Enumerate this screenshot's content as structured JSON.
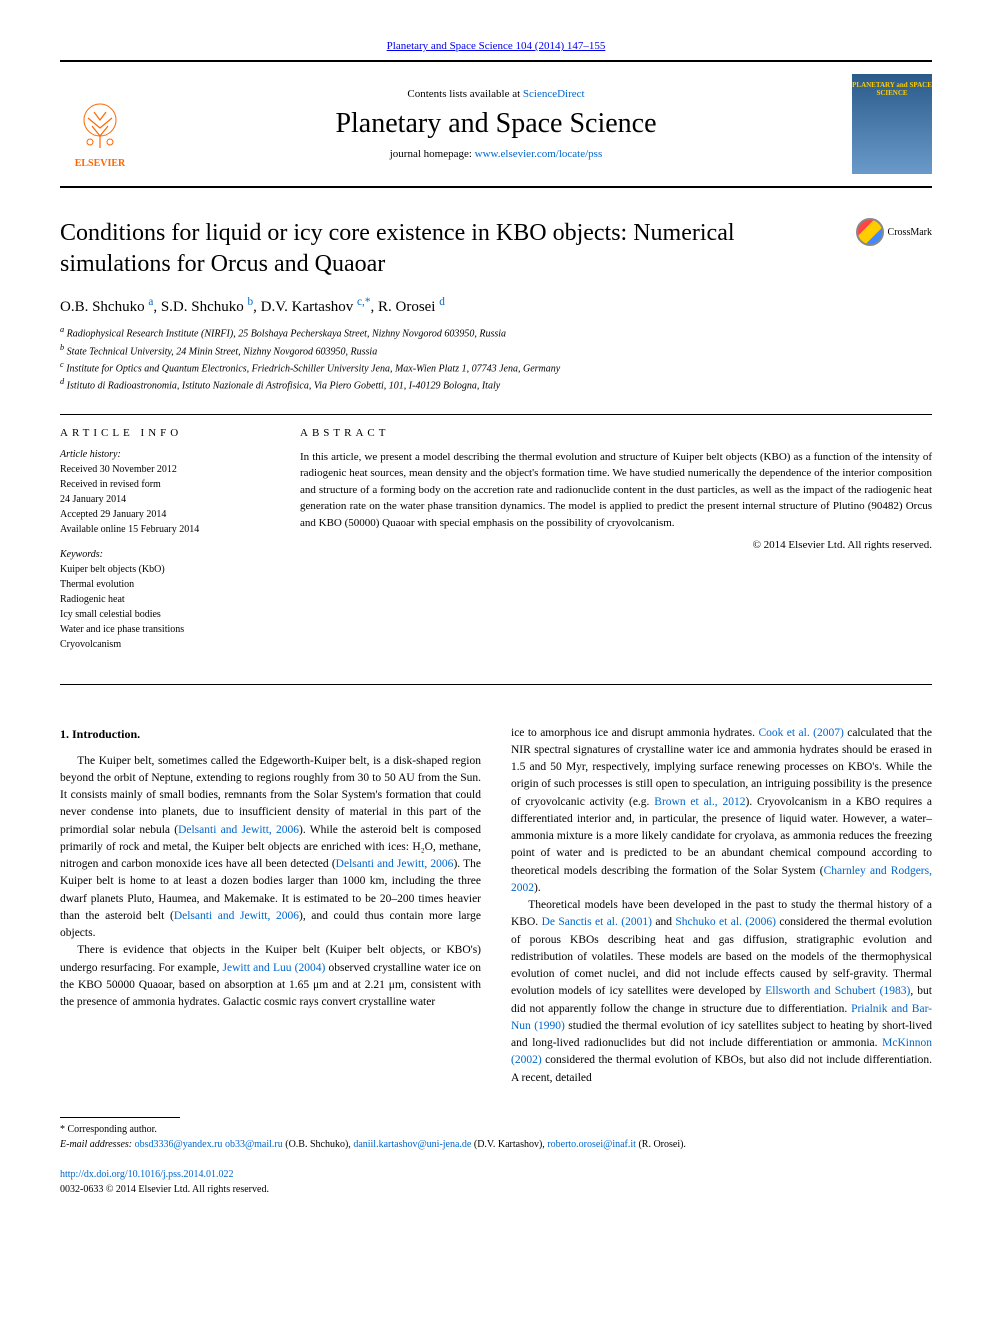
{
  "top_citation": "Planetary and Space Science 104 (2014) 147–155",
  "header": {
    "contents_lists_prefix": "Contents lists available at ",
    "contents_lists_link": "ScienceDirect",
    "journal_name": "Planetary and Space Science",
    "homepage_prefix": "journal homepage: ",
    "homepage_url": "www.elsevier.com/locate/pss",
    "publisher": "ELSEVIER",
    "cover_text": "PLANETARY and SPACE SCIENCE"
  },
  "crossmark_label": "CrossMark",
  "article": {
    "title": "Conditions for liquid or icy core existence in KBO objects: Numerical simulations for Orcus and Quaoar",
    "authors": [
      {
        "name": "O.B. Shchuko",
        "aff": "a"
      },
      {
        "name": "S.D. Shchuko",
        "aff": "b"
      },
      {
        "name": "D.V. Kartashov",
        "aff": "c,*"
      },
      {
        "name": "R. Orosei",
        "aff": "d"
      }
    ],
    "affiliations": [
      {
        "key": "a",
        "text": "Radiophysical Research Institute (NIRFI), 25 Bolshaya Pecherskaya Street, Nizhny Novgorod 603950, Russia"
      },
      {
        "key": "b",
        "text": "State Technical University, 24 Minin Street, Nizhny Novgorod 603950, Russia"
      },
      {
        "key": "c",
        "text": "Institute for Optics and Quantum Electronics, Friedrich-Schiller University Jena, Max-Wien Platz 1, 07743 Jena, Germany"
      },
      {
        "key": "d",
        "text": "Istituto di Radioastronomia, Istituto Nazionale di Astrofisica, Via Piero Gobetti, 101, I-40129 Bologna, Italy"
      }
    ]
  },
  "info": {
    "header": "ARTICLE INFO",
    "history_label": "Article history:",
    "history": "Received 30 November 2012\nReceived in revised form\n24 January 2014\nAccepted 29 January 2014\nAvailable online 15 February 2014",
    "keywords_label": "Keywords:",
    "keywords": "Kuiper belt objects (KbO)\nThermal evolution\nRadiogenic heat\nIcy small celestial bodies\nWater and ice phase transitions\nCryovolcanism"
  },
  "abstract": {
    "header": "ABSTRACT",
    "text": "In this article, we present a model describing the thermal evolution and structure of Kuiper belt objects (KBO) as a function of the intensity of radiogenic heat sources, mean density and the object's formation time. We have studied numerically the dependence of the interior composition and structure of a forming body on the accretion rate and radionuclide content in the dust particles, as well as the impact of the radiogenic heat generation rate on the water phase transition dynamics. The model is applied to predict the present internal structure of Plutino (90482) Orcus and KBO (50000) Quaoar with special emphasis on the possibility of cryovolcanism.",
    "copyright": "© 2014 Elsevier Ltd. All rights reserved."
  },
  "body": {
    "section_title": "1.  Introduction.",
    "col1_p1_a": "The Kuiper belt, sometimes called the Edgeworth-Kuiper belt, is a disk-shaped region beyond the orbit of Neptune, extending to regions roughly from 30 to 50 AU from the Sun. It consists mainly of small bodies, remnants from the Solar System's formation that could never condense into planets, due to insufficient density of material in this part of the primordial solar nebula (",
    "ref1": "Delsanti and Jewitt, 2006",
    "col1_p1_b": "). While the asteroid belt is composed primarily of rock and metal, the Kuiper belt objects are enriched with ices: H₂O, methane, nitrogen and carbon monoxide ices have all been detected (",
    "ref2": "Delsanti and Jewitt, 2006",
    "col1_p1_c": "). The Kuiper belt is home to at least a dozen bodies larger than 1000 km, including the three dwarf planets Pluto, Haumea, and Makemake. It is estimated to be 20–200 times heavier than the asteroid belt (",
    "ref3": "Delsanti and Jewitt, 2006",
    "col1_p1_d": "), and could thus contain more large objects.",
    "col1_p2_a": "There is evidence that objects in the Kuiper belt (Kuiper belt objects, or KBO's) undergo resurfacing. For example, ",
    "ref4": "Jewitt and Luu (2004)",
    "col1_p2_b": " observed crystalline water ice on the KBO 50000 Quaoar, based on absorption at 1.65 μm and at 2.21 μm, consistent with the presence of ammonia hydrates. Galactic cosmic rays convert crystalline water",
    "col2_p1_a": "ice to amorphous ice and disrupt ammonia hydrates. ",
    "ref5": "Cook et al. (2007)",
    "col2_p1_b": " calculated that the NIR spectral signatures of crystalline water ice and ammonia hydrates should be erased in 1.5 and 50 Myr, respectively, implying surface renewing processes on KBO's. While the origin of such processes is still open to speculation, an intriguing possibility is the presence of cryovolcanic activity (e.g. ",
    "ref6": "Brown et al., 2012",
    "col2_p1_c": "). Cryovolcanism in a KBO requires a differentiated interior and, in particular, the presence of liquid water. However, a water–ammonia mixture is a more likely candidate for cryolava, as ammonia reduces the freezing point of water and is predicted to be an abundant chemical compound according to theoretical models describing the formation of the Solar System (",
    "ref7": "Charnley and Rodgers, 2002",
    "col2_p1_d": ").",
    "col2_p2_a": "Theoretical models have been developed in the past to study the thermal history of a KBO. ",
    "ref8": "De Sanctis et al. (2001)",
    "col2_p2_b": " and ",
    "ref9": "Shchuko et al. (2006)",
    "col2_p2_c": " considered the thermal evolution of porous KBOs describing heat and gas diffusion, stratigraphic evolution and redistribution of volatiles. These models are based on the models of the thermophysical evolution of comet nuclei, and did not include effects caused by self-gravity. Thermal evolution models of icy satellites were developed by ",
    "ref10": "Ellsworth and Schubert (1983)",
    "col2_p2_d": ", but did not apparently follow the change in structure due to differentiation. ",
    "ref11": "Prialnik and Bar-Nun (1990)",
    "col2_p2_e": " studied the thermal evolution of icy satellites subject to heating by short-lived and long-lived radionuclides but did not include differentiation or ammonia. ",
    "ref12": "McKinnon (2002)",
    "col2_p2_f": " considered the thermal evolution of KBOs, but also did not include differentiation. A recent, detailed"
  },
  "footer": {
    "corresponding": "* Corresponding author.",
    "email_label": "E-mail addresses: ",
    "emails": [
      {
        "addr": "obsd3336@yandex.ru",
        "name": ""
      },
      {
        "addr": "ob33@mail.ru",
        "name": " (O.B. Shchuko),"
      },
      {
        "addr": "daniil.kartashov@uni-jena.de",
        "name": " (D.V. Kartashov), "
      },
      {
        "addr": "roberto.orosei@inaf.it",
        "name": " (R. Orosei)."
      }
    ],
    "doi": "http://dx.doi.org/10.1016/j.pss.2014.01.022",
    "issn": "0032-0633 © 2014 Elsevier Ltd. All rights reserved."
  },
  "colors": {
    "link": "#0066cc",
    "elsevier_orange": "#ff6600",
    "text": "#000000",
    "background": "#ffffff"
  }
}
